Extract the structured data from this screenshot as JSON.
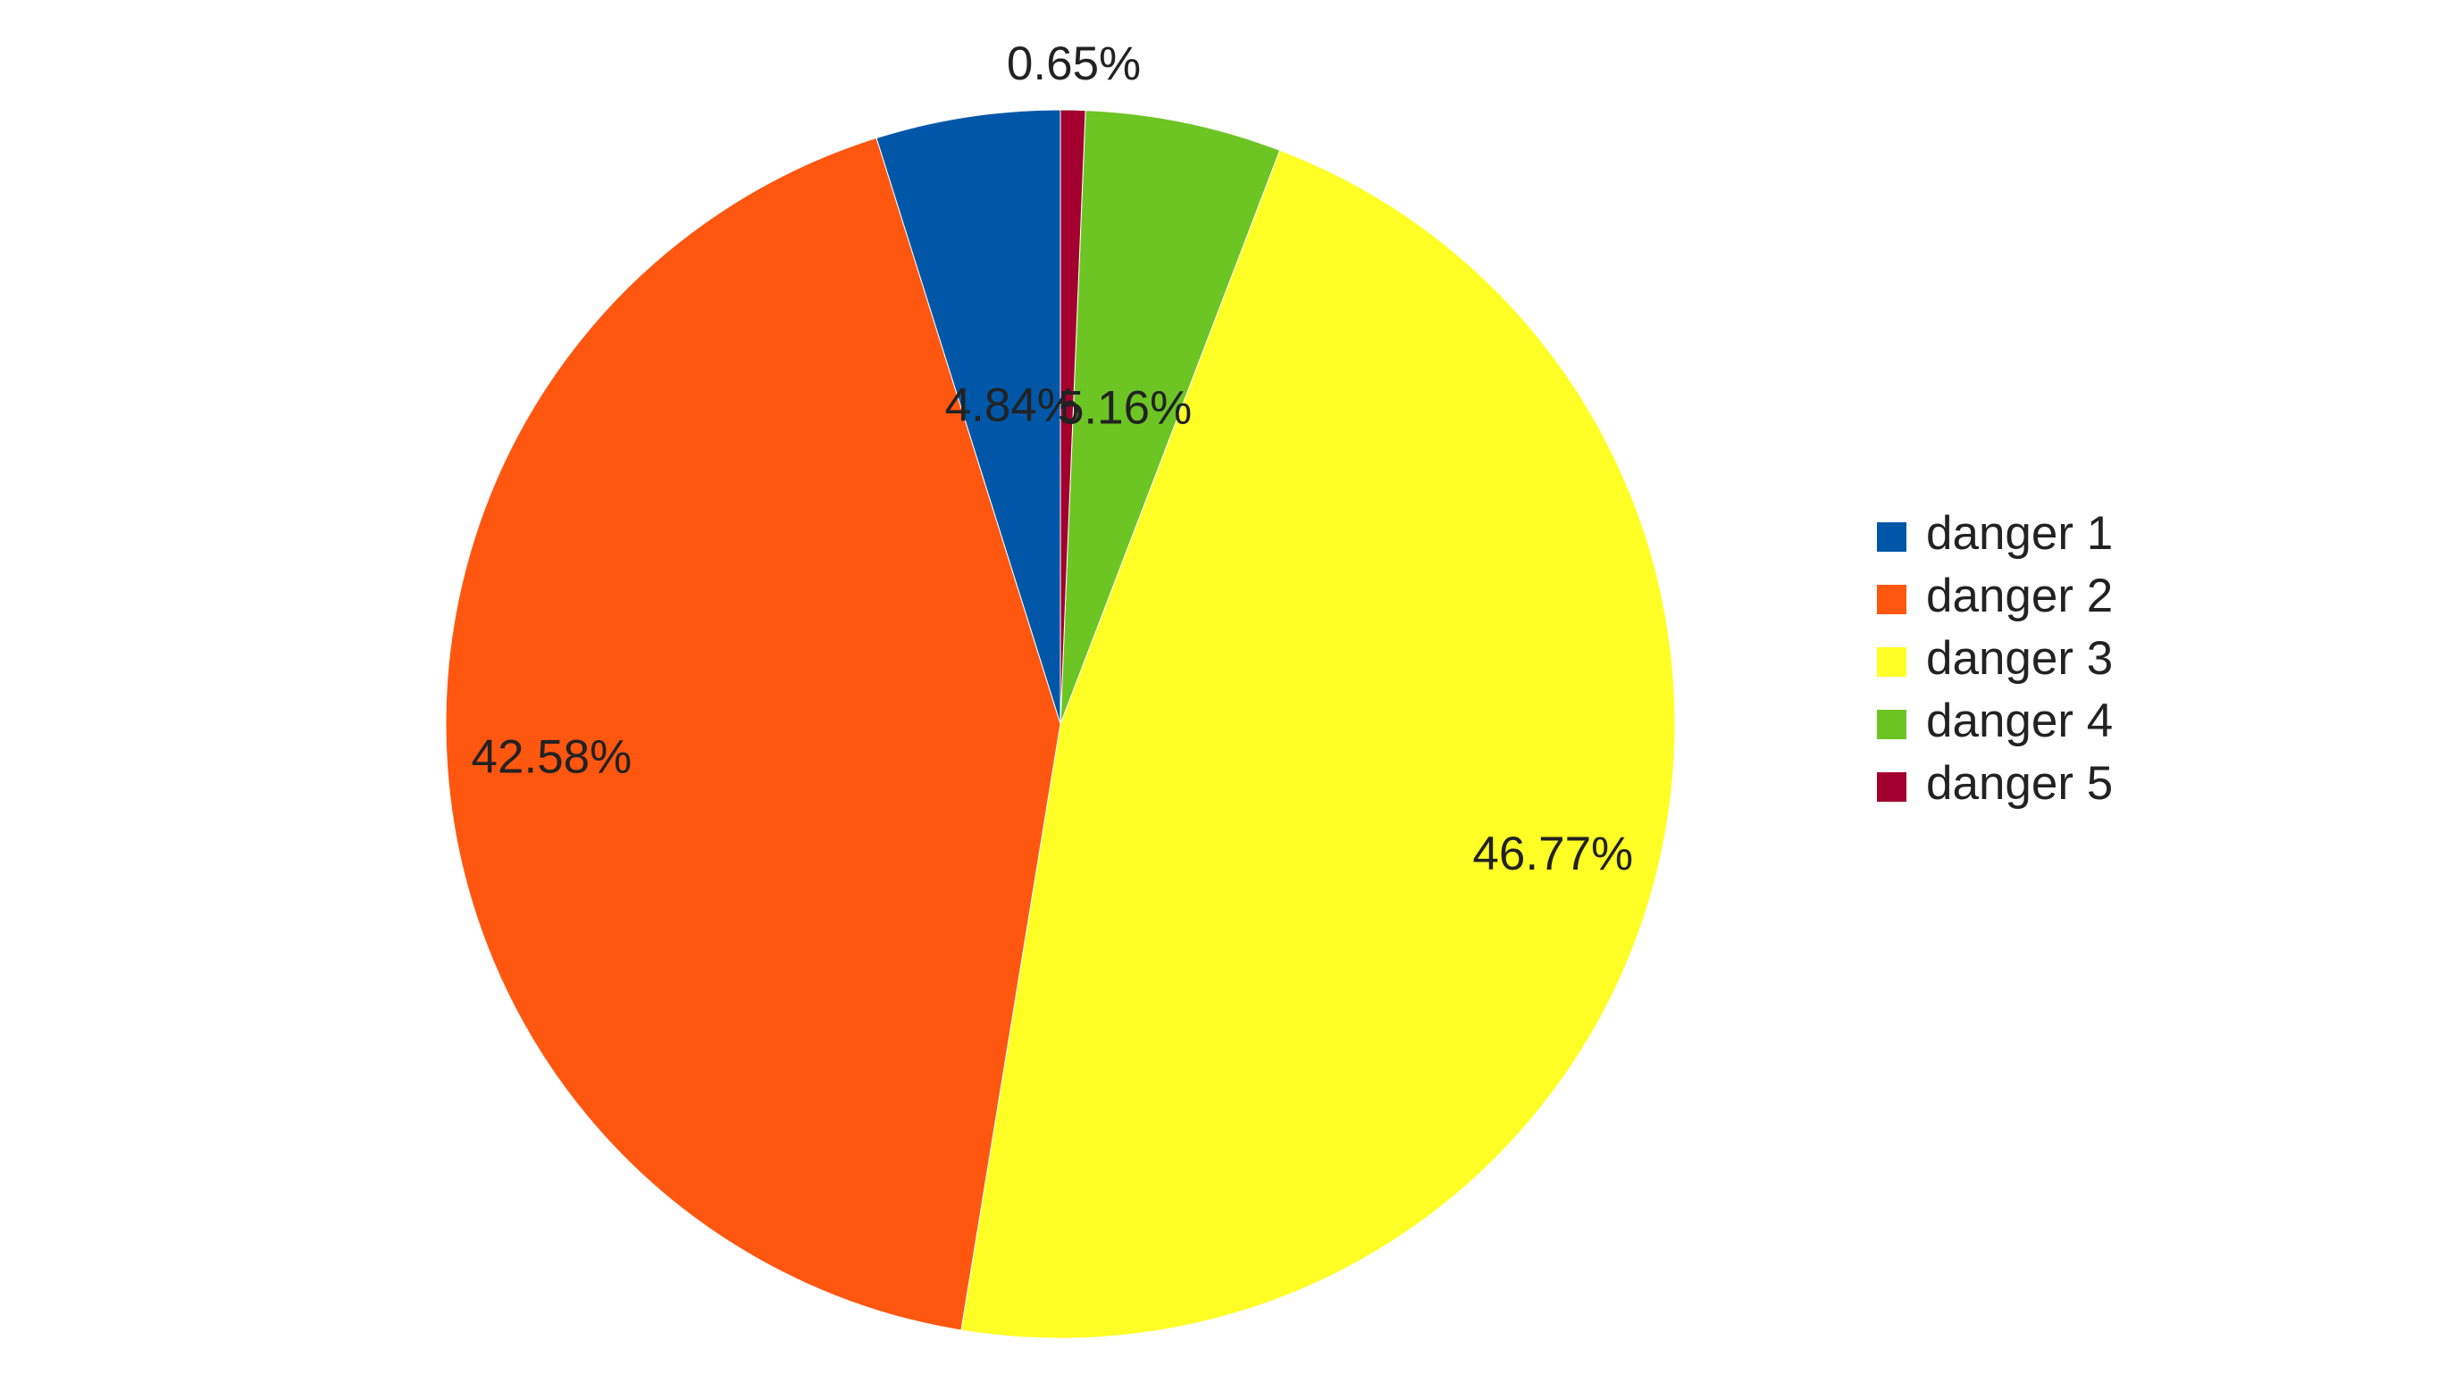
{
  "chart_data": {
    "type": "pie",
    "categories": [
      "danger 1",
      "danger 2",
      "danger 3",
      "danger 4",
      "danger 5"
    ],
    "values": [
      4.84,
      42.58,
      46.77,
      5.16,
      0.65
    ],
    "value_labels": [
      "4.84%",
      "42.58%",
      "46.77%",
      "5.16%",
      "0.65%"
    ],
    "colors": [
      "#0057a8",
      "#ff5610",
      "#ffff26",
      "#6dc524",
      "#a3002f"
    ],
    "legend": "right"
  }
}
